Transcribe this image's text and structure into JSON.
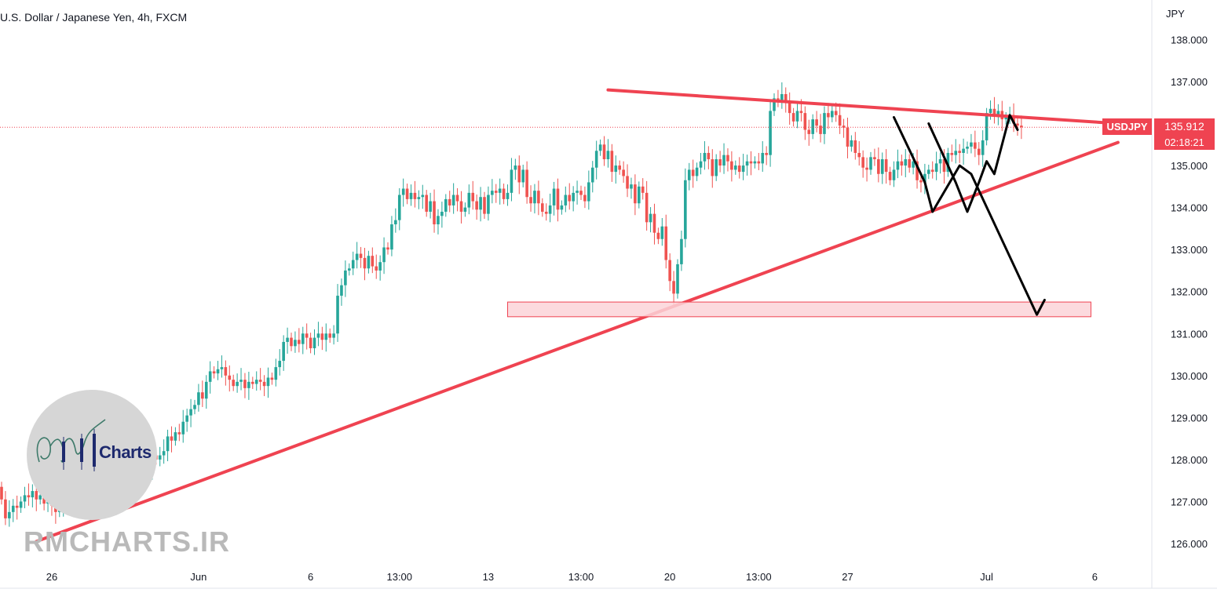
{
  "header": {
    "title": "U.S. Dollar / Japanese Yen, 4h, FXCM",
    "unit": "JPY"
  },
  "price_tag": {
    "symbol": "USDJPY",
    "value": "135.912",
    "countdown": "02:18:21"
  },
  "watermark": {
    "logo_text": "Charts",
    "site": "RMCHARTS.IR"
  },
  "colors": {
    "up": "#26a69a",
    "down": "#ef5350",
    "trendline": "#ef4351",
    "zone_fill": "#fbd3d8",
    "arrow": "#000000"
  },
  "chart_data": {
    "type": "candlestick",
    "title": "U.S. Dollar / Japanese Yen, 4h, FXCM",
    "symbol": "USDJPY",
    "interval": "4h",
    "ylim": [
      126.0,
      138.0
    ],
    "y_ticks": [
      "126.000",
      "127.000",
      "128.000",
      "129.000",
      "130.000",
      "131.000",
      "132.000",
      "133.000",
      "134.000",
      "135.000",
      "136.000",
      "137.000",
      "138.000"
    ],
    "x_ticks": [
      {
        "label": "26",
        "index": 13
      },
      {
        "label": "Jun",
        "index": 51
      },
      {
        "label": "6",
        "index": 80
      },
      {
        "label": "13:00",
        "index": 103
      },
      {
        "label": "13",
        "index": 126
      },
      {
        "label": "13:00",
        "index": 150
      },
      {
        "label": "20",
        "index": 173
      },
      {
        "label": "13:00",
        "index": 196
      },
      {
        "label": "27",
        "index": 219
      },
      {
        "label": "Jul",
        "index": 255
      },
      {
        "label": "6",
        "index": 283
      }
    ],
    "current_price": 135.912,
    "grid": false,
    "closes": [
      127.05,
      126.6,
      126.75,
      126.9,
      126.85,
      127.0,
      127.15,
      127.1,
      127.25,
      127.05,
      127.15,
      126.95,
      127.05,
      126.9,
      126.75,
      126.8,
      126.9,
      127.2,
      127.0,
      127.1,
      127.4,
      127.55,
      127.45,
      127.6,
      127.7,
      127.55,
      127.8,
      127.6,
      127.85,
      127.95,
      127.75,
      127.6,
      127.85,
      127.5,
      128.0,
      128.2,
      127.9,
      128.15,
      127.8,
      128.1,
      128.0,
      128.1,
      128.2,
      128.55,
      128.45,
      128.65,
      128.6,
      128.9,
      129.05,
      129.2,
      129.3,
      129.6,
      129.45,
      129.85,
      130.1,
      130.05,
      130.15,
      130.2,
      130.0,
      129.9,
      129.75,
      129.85,
      129.9,
      129.7,
      129.85,
      129.8,
      129.9,
      129.85,
      129.75,
      129.95,
      129.9,
      130.2,
      130.35,
      130.8,
      130.9,
      130.7,
      130.85,
      130.75,
      131.0,
      130.9,
      130.65,
      130.9,
      131.0,
      130.85,
      131.0,
      130.9,
      131.0,
      131.9,
      132.15,
      132.5,
      132.55,
      132.75,
      132.9,
      132.8,
      132.55,
      132.85,
      132.6,
      132.5,
      132.7,
      133.05,
      133.0,
      133.6,
      133.7,
      134.3,
      134.45,
      134.2,
      134.35,
      134.2,
      134.25,
      134.3,
      133.9,
      134.15,
      133.6,
      133.8,
      133.9,
      134.2,
      134.05,
      134.3,
      134.15,
      133.9,
      134.0,
      134.35,
      134.15,
      133.95,
      134.25,
      133.85,
      134.3,
      134.4,
      134.35,
      134.45,
      134.2,
      134.35,
      134.9,
      135.0,
      134.6,
      134.9,
      134.25,
      134.1,
      134.4,
      134.1,
      133.9,
      133.85,
      134.05,
      134.45,
      133.95,
      134.05,
      134.3,
      134.15,
      134.35,
      134.4,
      134.3,
      134.15,
      134.6,
      134.95,
      135.35,
      135.5,
      135.15,
      135.35,
      134.85,
      135.0,
      134.9,
      134.75,
      134.45,
      134.55,
      134.1,
      134.5,
      134.35,
      133.65,
      133.85,
      133.4,
      133.25,
      133.55,
      132.75,
      132.25,
      131.95,
      132.65,
      133.25,
      134.65,
      134.9,
      134.75,
      134.95,
      135.1,
      135.3,
      135.15,
      134.75,
      135.15,
      135.0,
      135.25,
      135.1,
      134.9,
      135.0,
      134.85,
      135.0,
      135.1,
      135.05,
      135.1,
      135.05,
      135.3,
      135.25,
      136.3,
      136.6,
      136.55,
      136.7,
      136.5,
      136.25,
      136.05,
      136.3,
      136.25,
      135.85,
      135.75,
      136.1,
      135.95,
      135.75,
      136.25,
      136.15,
      136.3,
      136.2,
      135.95,
      135.9,
      135.45,
      135.6,
      135.3,
      135.2,
      134.95,
      134.9,
      135.2,
      135.15,
      134.8,
      135.15,
      134.85,
      134.65,
      134.9,
      135.1,
      135.0,
      135.15,
      134.95,
      135.1,
      134.65,
      134.6,
      134.8,
      134.9,
      134.85,
      135.05,
      135.15,
      134.85,
      135.3,
      135.25,
      135.35,
      135.3,
      135.4,
      135.45,
      135.55,
      135.4,
      135.25,
      135.6,
      136.25,
      136.35,
      136.2,
      136.3,
      136.1,
      136.15,
      136.2,
      136.0,
      135.95,
      135.912
    ],
    "annotations": [
      {
        "type": "trendline",
        "label": "",
        "from": {
          "index": 9,
          "price": 126.05
        },
        "to": {
          "index": 289,
          "price": 135.55
        }
      },
      {
        "type": "trendline",
        "label": "",
        "from": {
          "index": 157,
          "price": 136.8
        },
        "to": {
          "index": 289,
          "price": 136.0
        }
      },
      {
        "type": "zone",
        "label": "",
        "from": {
          "index": 131,
          "price": 131.75
        },
        "to": {
          "index": 282,
          "price": 131.4
        }
      },
      {
        "type": "projection_arrow",
        "points": [
          {
            "index": 240,
            "price": 136.0
          },
          {
            "index": 247,
            "price": 134.6
          },
          {
            "index": 250,
            "price": 133.9
          },
          {
            "index": 253,
            "price": 134.6
          },
          {
            "index": 255,
            "price": 135.1
          },
          {
            "index": 257,
            "price": 134.8
          },
          {
            "index": 261,
            "price": 136.2
          },
          {
            "index": 263,
            "price": 135.85
          }
        ]
      },
      {
        "type": "projection_arrow",
        "points": [
          {
            "index": 231,
            "price": 136.15
          },
          {
            "index": 239,
            "price": 134.6
          },
          {
            "index": 241,
            "price": 133.9
          },
          {
            "index": 248,
            "price": 135.0
          },
          {
            "index": 251,
            "price": 134.8
          },
          {
            "index": 268,
            "price": 131.45
          },
          {
            "index": 270,
            "price": 131.8
          }
        ]
      }
    ]
  }
}
